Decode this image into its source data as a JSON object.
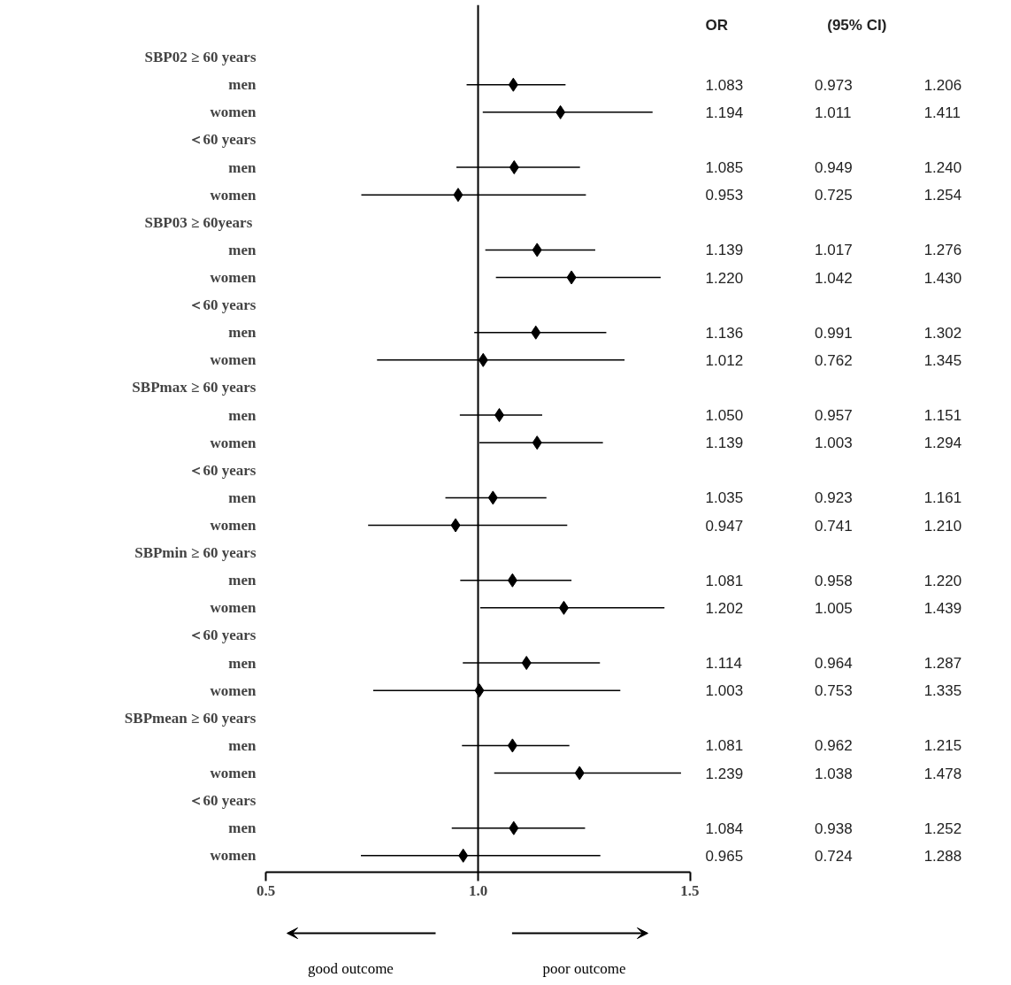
{
  "chart_data": {
    "type": "scatter",
    "orientation": "horizontal",
    "marker": "diamond",
    "grid": false,
    "categories": [
      "SBP02 ≥ 60 years",
      "men",
      "women",
      "＜60 years",
      "men",
      "women",
      "SBP03 ≥  60years",
      "men",
      "women",
      "＜60 years",
      "men",
      "women",
      "SBPmax ≥ 60 years",
      "men",
      "women",
      "＜60 years",
      "men",
      "women",
      "SBPmin ≥ 60 years",
      "men",
      "women",
      "＜60 years",
      "men",
      "women",
      "SBPmean ≥ 60 years",
      "men",
      "women",
      "＜60 years",
      "men",
      "women"
    ],
    "series": [
      {
        "color": "#000000",
        "values": [
          null,
          1.083,
          1.194,
          null,
          1.085,
          0.953,
          null,
          1.139,
          1.22,
          null,
          1.136,
          1.012,
          null,
          1.05,
          1.139,
          null,
          1.035,
          0.947,
          null,
          1.081,
          1.202,
          null,
          1.114,
          1.003,
          null,
          1.081,
          1.239,
          null,
          1.084,
          0.965
        ],
        "errors": [
          null,
          [
            0.973,
            1.206
          ],
          [
            1.011,
            1.411
          ],
          null,
          [
            0.949,
            1.24
          ],
          [
            0.725,
            1.254
          ],
          null,
          [
            1.017,
            1.276
          ],
          [
            1.042,
            1.43
          ],
          null,
          [
            0.991,
            1.302
          ],
          [
            0.762,
            1.345
          ],
          null,
          [
            0.957,
            1.151
          ],
          [
            1.003,
            1.294
          ],
          null,
          [
            0.923,
            1.161
          ],
          [
            0.741,
            1.21
          ],
          null,
          [
            0.958,
            1.22
          ],
          [
            1.005,
            1.439
          ],
          null,
          [
            0.964,
            1.287
          ],
          [
            0.753,
            1.335
          ],
          null,
          [
            0.962,
            1.215
          ],
          [
            1.038,
            1.478
          ],
          null,
          [
            0.938,
            1.252
          ],
          [
            0.724,
            1.288
          ]
        ]
      }
    ],
    "xlim": [
      0.5,
      1.5
    ],
    "xticks": [
      0.5,
      {
        "value": 1.0,
        "label": "1.0"
      },
      1.5
    ],
    "ref_lines": [
      {
        "axis": "x",
        "value": 1.0,
        "color": "#000000"
      }
    ],
    "annotations": [
      "OR",
      "(95% CI)",
      "good outcome",
      "poor outcome",
      "1.083",
      "0.973",
      "1.206",
      "1.194",
      "1.011",
      "1.411",
      "1.085",
      "0.949",
      "1.240",
      "0.953",
      "0.725",
      "1.254",
      "1.139",
      "1.017",
      "1.276",
      "1.220",
      "1.042",
      "1.430",
      "1.136",
      "0.991",
      "1.302",
      "1.012",
      "0.762",
      "1.345",
      "1.050",
      "0.957",
      "1.151",
      "1.139",
      "1.003",
      "1.294",
      "1.035",
      "0.923",
      "1.161",
      "0.947",
      "0.741",
      "1.210",
      "1.081",
      "0.958",
      "1.220",
      "1.202",
      "1.005",
      "1.439",
      "1.114",
      "0.964",
      "1.287",
      "1.003",
      "0.753",
      "1.335",
      "1.081",
      "0.962",
      "1.215",
      "1.239",
      "1.038",
      "1.478",
      "1.084",
      "0.938",
      "1.252",
      "0.965",
      "0.724",
      "1.288"
    ]
  }
}
